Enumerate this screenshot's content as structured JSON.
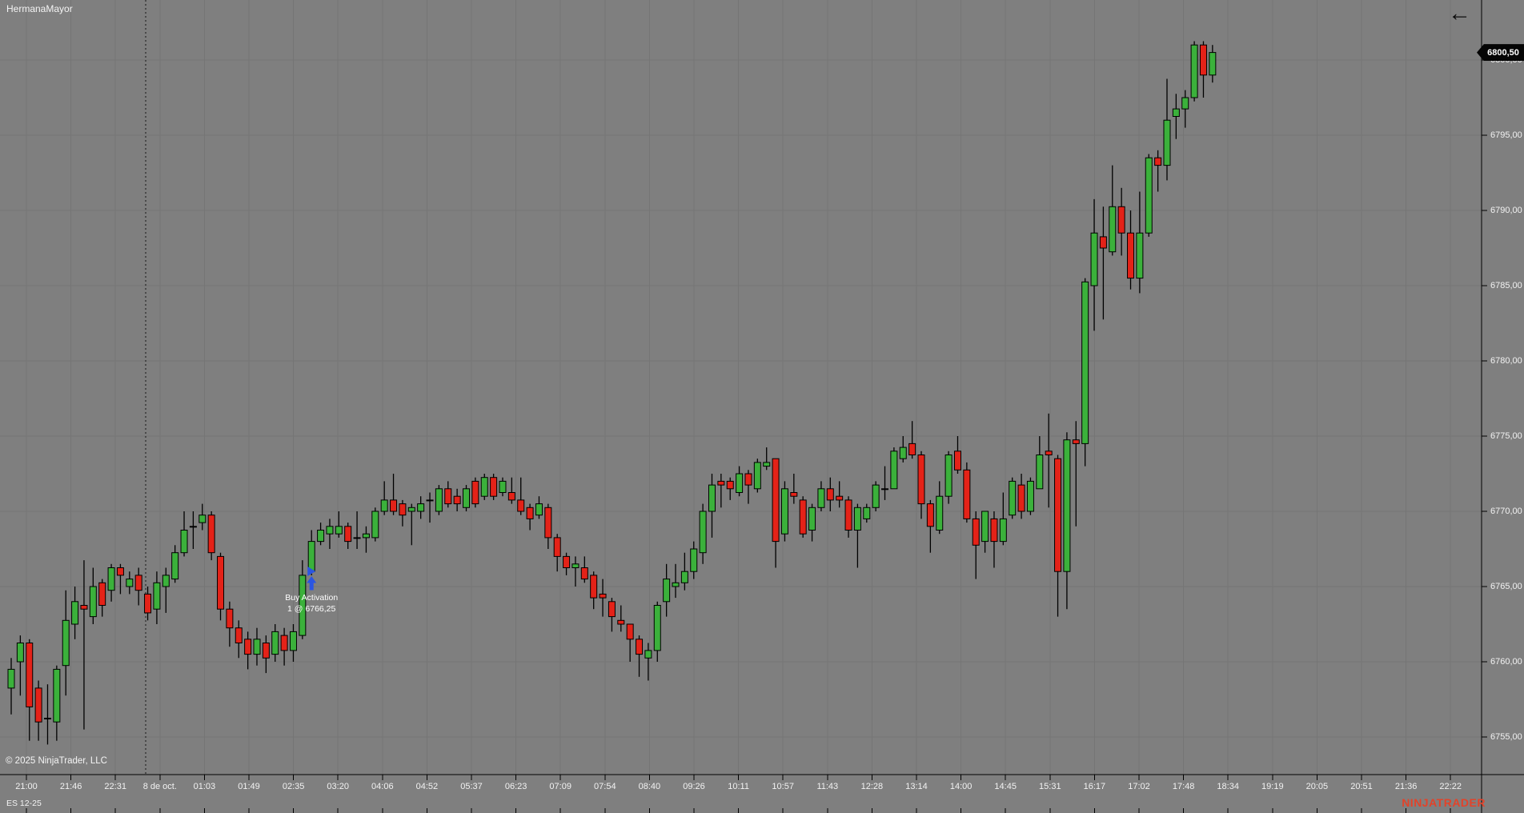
{
  "header": {
    "title": "HermanaMayor",
    "back_arrow": "←"
  },
  "footer": {
    "copyright": "© 2025 NinjaTrader, LLC",
    "instrument": "ES 12-25",
    "brand_watermark": "NINJATRADER"
  },
  "price_axis": {
    "last_price_label": "6800,50",
    "tick_labels": [
      "6800,00",
      "6795,00",
      "6790,00",
      "6785,00",
      "6780,00",
      "6775,00",
      "6770,00",
      "6765,00",
      "6760,00",
      "6755,00"
    ]
  },
  "time_axis": {
    "tick_labels": [
      "21:00",
      "21:46",
      "22:31",
      "8 de oct.",
      "01:03",
      "01:49",
      "02:35",
      "03:20",
      "04:06",
      "04:52",
      "05:37",
      "06:23",
      "07:09",
      "07:54",
      "08:40",
      "09:26",
      "10:11",
      "10:57",
      "11:43",
      "12:28",
      "13:14",
      "14:00",
      "14:45",
      "15:31",
      "16:17",
      "17:02",
      "17:48",
      "18:34",
      "19:19",
      "20:05",
      "20:51",
      "21:36",
      "22:22"
    ]
  },
  "annotation": {
    "line1": "Buy Activation",
    "line2": "1 @ 6766,25"
  },
  "colors": {
    "background": "#7f7f7f",
    "grid": "#757575",
    "session_break": "#141414",
    "candle_up": "#3bb13b",
    "candle_down": "#e42218",
    "candle_outline": "#000000",
    "axis_line": "#000000",
    "label_text": "#f2f2f2",
    "badge_bg": "#050505",
    "badge_text": "#ffffff",
    "buy_marker_blue": "#2b55e2",
    "brand_red": "#e2432a"
  },
  "chart_data": {
    "type": "candlestick",
    "title": "HermanaMayor",
    "instrument": "ES 12-25",
    "ylabel": "price",
    "ylim": [
      6751,
      6804
    ],
    "grid": true,
    "price_gridlines": [
      6800,
      6795,
      6790,
      6785,
      6780,
      6775,
      6770,
      6765,
      6760,
      6755
    ],
    "last_price": 6800.5,
    "session_break_after_bar": 14,
    "buy_signal": {
      "label": "Buy Activation",
      "detail": "1 @ 6766,25",
      "price": 6766.25,
      "bar_index": 33
    },
    "time_labels": [
      "21:00",
      "21:46",
      "22:31",
      "8 de oct.",
      "01:03",
      "01:49",
      "02:35",
      "03:20",
      "04:06",
      "04:52",
      "05:37",
      "06:23",
      "07:09",
      "07:54",
      "08:40",
      "09:26",
      "10:11",
      "10:57",
      "11:43",
      "12:28",
      "13:14",
      "14:00",
      "14:45",
      "15:31",
      "16:17",
      "17:02",
      "17:48",
      "18:34",
      "19:19",
      "20:05",
      "20:51",
      "21:36",
      "22:22"
    ],
    "candles_ohlc": [
      [
        6758.25,
        6760.25,
        6756.5,
        6759.5
      ],
      [
        6760.0,
        6761.75,
        6757.75,
        6761.25
      ],
      [
        6761.25,
        6761.5,
        6754.75,
        6757.0
      ],
      [
        6758.25,
        6758.75,
        6754.75,
        6756.0
      ],
      [
        6756.25,
        6758.5,
        6754.5,
        6756.25
      ],
      [
        6756.0,
        6759.75,
        6754.75,
        6759.5
      ],
      [
        6759.75,
        6764.75,
        6757.75,
        6762.75
      ],
      [
        6762.5,
        6765.0,
        6761.5,
        6764.0
      ],
      [
        6763.75,
        6766.75,
        6755.5,
        6763.5
      ],
      [
        6763.0,
        6766.25,
        6762.5,
        6765.0
      ],
      [
        6765.25,
        6765.5,
        6763.0,
        6763.75
      ],
      [
        6764.75,
        6766.5,
        6764.0,
        6766.25
      ],
      [
        6766.25,
        6766.5,
        6764.5,
        6765.75
      ],
      [
        6765.0,
        6766.0,
        6764.5,
        6765.5
      ],
      [
        6765.75,
        6766.25,
        6763.75,
        6764.75
      ],
      [
        6764.5,
        6765.0,
        6762.75,
        6763.25
      ],
      [
        6763.5,
        6766.0,
        6762.5,
        6765.25
      ],
      [
        6765.0,
        6766.25,
        6763.25,
        6765.75
      ],
      [
        6765.5,
        6767.75,
        6765.25,
        6767.25
      ],
      [
        6767.25,
        6770.0,
        6767.0,
        6768.75
      ],
      [
        6769.0,
        6770.0,
        6767.5,
        6769.0
      ],
      [
        6769.25,
        6770.5,
        6768.75,
        6769.75
      ],
      [
        6769.75,
        6770.0,
        6766.75,
        6767.25
      ],
      [
        6767.0,
        6767.25,
        6762.75,
        6763.5
      ],
      [
        6763.5,
        6764.0,
        6761.0,
        6762.25
      ],
      [
        6762.25,
        6762.75,
        6760.25,
        6761.25
      ],
      [
        6761.5,
        6762.0,
        6759.5,
        6760.5
      ],
      [
        6760.5,
        6762.25,
        6759.75,
        6761.5
      ],
      [
        6761.25,
        6761.75,
        6759.25,
        6760.25
      ],
      [
        6760.5,
        6762.5,
        6760.0,
        6762.0
      ],
      [
        6761.75,
        6762.25,
        6759.75,
        6760.75
      ],
      [
        6760.75,
        6762.5,
        6760.0,
        6762.0
      ],
      [
        6761.75,
        6766.75,
        6761.5,
        6765.75
      ],
      [
        6766.0,
        6768.75,
        6765.75,
        6768.0
      ],
      [
        6768.0,
        6769.25,
        6767.75,
        6768.75
      ],
      [
        6768.5,
        6769.5,
        6767.5,
        6769.0
      ],
      [
        6768.5,
        6770.0,
        6768.25,
        6769.0
      ],
      [
        6769.0,
        6769.25,
        6767.5,
        6768.0
      ],
      [
        6768.25,
        6770.0,
        6767.5,
        6768.25
      ],
      [
        6768.25,
        6769.0,
        6767.25,
        6768.5
      ],
      [
        6768.25,
        6770.25,
        6768.0,
        6770.0
      ],
      [
        6770.0,
        6772.0,
        6769.75,
        6770.75
      ],
      [
        6770.75,
        6772.5,
        6769.75,
        6770.0
      ],
      [
        6770.5,
        6770.75,
        6769.0,
        6769.75
      ],
      [
        6770.0,
        6770.5,
        6767.75,
        6770.25
      ],
      [
        6770.0,
        6771.0,
        6769.5,
        6770.5
      ],
      [
        6770.75,
        6771.25,
        6769.25,
        6770.75
      ],
      [
        6770.0,
        6771.75,
        6769.75,
        6771.5
      ],
      [
        6771.5,
        6772.0,
        6770.25,
        6770.5
      ],
      [
        6771.0,
        6771.5,
        6770.0,
        6770.5
      ],
      [
        6770.25,
        6771.75,
        6770.0,
        6771.5
      ],
      [
        6772.0,
        6772.25,
        6770.25,
        6770.5
      ],
      [
        6771.0,
        6772.5,
        6770.75,
        6772.25
      ],
      [
        6772.25,
        6772.5,
        6770.75,
        6771.0
      ],
      [
        6771.25,
        6772.25,
        6771.0,
        6772.0
      ],
      [
        6771.25,
        6772.25,
        6770.5,
        6770.75
      ],
      [
        6770.75,
        6772.25,
        6769.75,
        6770.0
      ],
      [
        6770.25,
        6770.5,
        6768.75,
        6769.5
      ],
      [
        6769.75,
        6771.0,
        6769.5,
        6770.5
      ],
      [
        6770.25,
        6770.5,
        6767.5,
        6768.25
      ],
      [
        6768.25,
        6768.5,
        6766.0,
        6767.0
      ],
      [
        6767.0,
        6767.25,
        6765.75,
        6766.25
      ],
      [
        6766.25,
        6767.0,
        6765.0,
        6766.5
      ],
      [
        6766.25,
        6767.0,
        6765.25,
        6765.5
      ],
      [
        6765.75,
        6766.0,
        6763.5,
        6764.25
      ],
      [
        6764.5,
        6765.5,
        6763.0,
        6764.25
      ],
      [
        6764.0,
        6764.25,
        6762.0,
        6763.0
      ],
      [
        6762.75,
        6763.75,
        6762.0,
        6762.5
      ],
      [
        6762.5,
        6762.5,
        6760.0,
        6761.5
      ],
      [
        6761.5,
        6761.75,
        6759.0,
        6760.5
      ],
      [
        6760.25,
        6761.25,
        6758.75,
        6760.75
      ],
      [
        6760.75,
        6764.0,
        6760.0,
        6763.75
      ],
      [
        6764.0,
        6766.5,
        6763.0,
        6765.5
      ],
      [
        6765.0,
        6766.5,
        6764.25,
        6765.25
      ],
      [
        6765.25,
        6767.25,
        6764.75,
        6766.0
      ],
      [
        6766.0,
        6768.0,
        6765.5,
        6767.5
      ],
      [
        6767.25,
        6770.5,
        6766.5,
        6770.0
      ],
      [
        6770.0,
        6772.5,
        6768.25,
        6771.75
      ],
      [
        6772.0,
        6772.5,
        6770.25,
        6771.75
      ],
      [
        6772.0,
        6772.25,
        6770.75,
        6771.5
      ],
      [
        6771.25,
        6773.0,
        6771.0,
        6772.5
      ],
      [
        6772.5,
        6772.75,
        6770.5,
        6771.75
      ],
      [
        6771.5,
        6773.5,
        6771.25,
        6773.25
      ],
      [
        6773.0,
        6774.25,
        6772.75,
        6773.25
      ],
      [
        6773.5,
        6773.5,
        6766.25,
        6768.0
      ],
      [
        6768.5,
        6772.0,
        6768.0,
        6771.5
      ],
      [
        6771.25,
        6772.5,
        6770.5,
        6771.0
      ],
      [
        6770.75,
        6771.0,
        6768.25,
        6768.5
      ],
      [
        6768.75,
        6770.5,
        6768.0,
        6770.25
      ],
      [
        6770.25,
        6772.0,
        6770.0,
        6771.5
      ],
      [
        6771.5,
        6772.25,
        6770.0,
        6770.75
      ],
      [
        6771.0,
        6772.0,
        6770.25,
        6770.75
      ],
      [
        6770.75,
        6771.0,
        6768.25,
        6768.75
      ],
      [
        6768.75,
        6770.5,
        6766.25,
        6770.25
      ],
      [
        6769.5,
        6770.5,
        6769.25,
        6770.25
      ],
      [
        6770.25,
        6772.0,
        6770.0,
        6771.75
      ],
      [
        6771.5,
        6773.0,
        6770.75,
        6771.5
      ],
      [
        6771.5,
        6774.25,
        6771.5,
        6774.0
      ],
      [
        6773.5,
        6775.0,
        6773.25,
        6774.25
      ],
      [
        6774.5,
        6776.0,
        6773.5,
        6773.75
      ],
      [
        6773.75,
        6774.0,
        6769.5,
        6770.5
      ],
      [
        6770.5,
        6770.75,
        6767.25,
        6769.0
      ],
      [
        6768.75,
        6772.0,
        6768.5,
        6771.0
      ],
      [
        6771.0,
        6774.0,
        6770.5,
        6773.75
      ],
      [
        6774.0,
        6775.0,
        6772.5,
        6772.75
      ],
      [
        6772.75,
        6773.25,
        6769.25,
        6769.5
      ],
      [
        6769.5,
        6770.0,
        6765.5,
        6767.75
      ],
      [
        6768.0,
        6770.0,
        6767.25,
        6770.0
      ],
      [
        6769.5,
        6770.0,
        6766.25,
        6768.0
      ],
      [
        6768.0,
        6771.25,
        6767.75,
        6769.5
      ],
      [
        6769.75,
        6772.25,
        6769.5,
        6772.0
      ],
      [
        6771.75,
        6772.5,
        6769.5,
        6770.0
      ],
      [
        6770.0,
        6772.25,
        6769.75,
        6772.0
      ],
      [
        6771.5,
        6775.0,
        6771.5,
        6773.75
      ],
      [
        6774.0,
        6776.5,
        6770.25,
        6773.75
      ],
      [
        6773.5,
        6773.75,
        6763.0,
        6766.0
      ],
      [
        6766.0,
        6775.25,
        6763.5,
        6774.75
      ],
      [
        6774.75,
        6776.0,
        6769.0,
        6774.5
      ],
      [
        6774.5,
        6785.5,
        6773.0,
        6785.25
      ],
      [
        6785.0,
        6790.75,
        6782.0,
        6788.5
      ],
      [
        6788.25,
        6790.25,
        6782.75,
        6787.5
      ],
      [
        6787.25,
        6793.0,
        6787.0,
        6790.25
      ],
      [
        6790.25,
        6791.5,
        6787.0,
        6788.5
      ],
      [
        6788.5,
        6790.0,
        6784.75,
        6785.5
      ],
      [
        6785.5,
        6791.25,
        6784.5,
        6788.5
      ],
      [
        6788.5,
        6793.75,
        6788.25,
        6793.5
      ],
      [
        6793.5,
        6794.0,
        6791.25,
        6793.0
      ],
      [
        6793.0,
        6798.75,
        6792.0,
        6796.0
      ],
      [
        6796.25,
        6797.75,
        6794.75,
        6796.75
      ],
      [
        6796.75,
        6798.0,
        6795.5,
        6797.5
      ],
      [
        6797.5,
        6801.25,
        6797.25,
        6801.0
      ],
      [
        6801.0,
        6801.25,
        6797.5,
        6799.0
      ],
      [
        6799.0,
        6801.0,
        6798.5,
        6800.5
      ]
    ]
  }
}
